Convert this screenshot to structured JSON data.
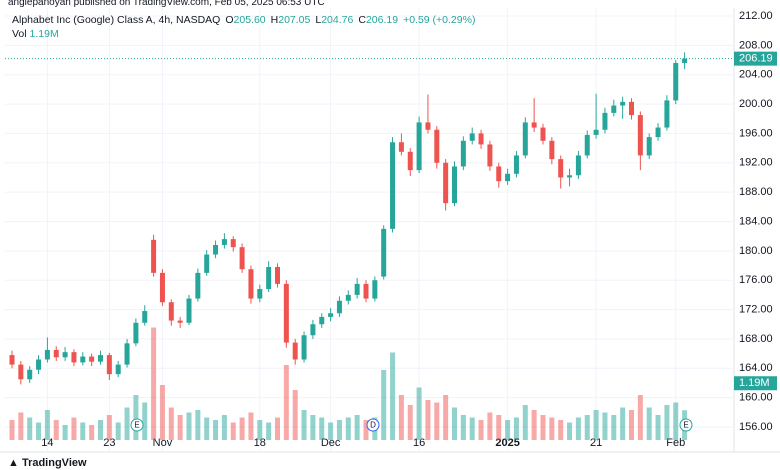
{
  "header": "anglepanoyan published on TradingView.com, Feb 05, 2025 06:53 UTC",
  "footer": "TradingView",
  "chart_data": {
    "type": "candlestick",
    "symbol": "Alphabet Inc (Google) Class A, 4h, NASDAQ",
    "ohlc_legend": [
      {
        "key": "O",
        "value": "205.60"
      },
      {
        "key": "H",
        "value": "207.05"
      },
      {
        "key": "L",
        "value": "204.76"
      },
      {
        "key": "C",
        "value": "206.19"
      }
    ],
    "change": "+0.59 (+0.29%)",
    "volume_legend": {
      "key": "Vol",
      "value": "1.19M"
    },
    "last_price_label": "206.19",
    "last_volume_label": "1.19M",
    "up_color": "#26a69a",
    "down_color": "#ef5350",
    "grid": true,
    "events": [
      {
        "label": "E"
      },
      {
        "label": "D"
      },
      {
        "label": "E"
      }
    ],
    "categories": [
      null,
      null,
      null,
      null,
      "14",
      null,
      null,
      null,
      null,
      null,
      null,
      "23",
      null,
      null,
      null,
      null,
      null,
      "Nov",
      null,
      null,
      null,
      null,
      null,
      null,
      null,
      null,
      null,
      null,
      "18",
      null,
      null,
      null,
      null,
      null,
      null,
      null,
      "Dec",
      null,
      null,
      null,
      null,
      null,
      null,
      null,
      null,
      null,
      "16",
      null,
      null,
      null,
      null,
      null,
      null,
      null,
      null,
      null,
      "2025",
      null,
      null,
      null,
      null,
      null,
      null,
      null,
      null,
      null,
      "21",
      null,
      null,
      null,
      null,
      null,
      null,
      null,
      null,
      "Feb",
      null
    ],
    "open": [
      165.8,
      164.5,
      162.5,
      163.8,
      165.2,
      166.5,
      165.5,
      166.2,
      164.8,
      165.6,
      164.9,
      165.8,
      163.2,
      164.5,
      167.4,
      170.2,
      181.5,
      177.0,
      173.0,
      170.5,
      170.2,
      173.5,
      177.0,
      179.5,
      180.8,
      181.6,
      180.5,
      177.5,
      173.5,
      174.8,
      177.8,
      175.5,
      167.5,
      165.2,
      168.5,
      170.0,
      171.0,
      171.5,
      173.2,
      174.0,
      175.5,
      173.5,
      176.5,
      183.0,
      194.8,
      193.5,
      191.0,
      197.5,
      196.5,
      192.0,
      186.5,
      191.5,
      195.0,
      196.0,
      194.5,
      191.5,
      189.5,
      190.5,
      193.0,
      197.5,
      196.8,
      195.0,
      192.5,
      190.0,
      190.3,
      193.0,
      195.8,
      196.5,
      198.8,
      199.8,
      200.3,
      198.5,
      193.0,
      195.5,
      196.8,
      200.5,
      205.6
    ],
    "high": [
      166.4,
      165.0,
      164.3,
      165.8,
      168.2,
      167.0,
      166.9,
      166.6,
      166.2,
      166.0,
      166.4,
      166.1,
      165.0,
      168.0,
      170.8,
      172.6,
      182.2,
      177.5,
      173.4,
      171.0,
      174.0,
      177.6,
      180.1,
      181.4,
      182.4,
      182.0,
      181.0,
      178.0,
      175.4,
      178.6,
      178.3,
      176.0,
      168.0,
      169.0,
      170.6,
      171.5,
      172.2,
      173.8,
      174.6,
      176.3,
      176.0,
      176.5,
      183.5,
      195.5,
      196.0,
      194.0,
      198.3,
      201.3,
      197.0,
      192.5,
      192.2,
      195.6,
      196.8,
      196.5,
      195.0,
      192.0,
      191.2,
      193.6,
      198.2,
      200.8,
      197.3,
      195.5,
      193.0,
      191.2,
      193.6,
      196.4,
      201.4,
      199.5,
      200.6,
      201.0,
      200.8,
      199.0,
      196.0,
      197.4,
      201.2,
      206.0,
      207.05
    ],
    "low": [
      164.0,
      161.8,
      162.0,
      163.2,
      164.8,
      165.0,
      165.0,
      164.3,
      164.4,
      164.3,
      164.5,
      162.4,
      162.8,
      164.1,
      167.0,
      169.8,
      176.5,
      172.5,
      169.8,
      169.5,
      169.9,
      173.1,
      176.6,
      179.0,
      180.3,
      179.9,
      177.0,
      172.8,
      173.0,
      174.4,
      175.0,
      166.8,
      164.5,
      164.8,
      168.0,
      169.5,
      170.4,
      171.0,
      172.7,
      173.5,
      173.0,
      173.1,
      176.1,
      182.5,
      193.0,
      190.2,
      190.6,
      196.0,
      191.2,
      185.5,
      186.1,
      191.0,
      194.5,
      193.9,
      190.9,
      188.6,
      189.0,
      190.0,
      192.6,
      196.2,
      194.5,
      191.8,
      188.5,
      188.8,
      189.8,
      192.6,
      195.3,
      196.0,
      198.3,
      198.0,
      197.9,
      191.0,
      192.5,
      195.0,
      196.4,
      200.0,
      204.76
    ],
    "close": [
      164.5,
      162.5,
      163.8,
      165.2,
      166.5,
      165.5,
      166.2,
      164.8,
      165.6,
      164.9,
      165.8,
      163.2,
      164.5,
      167.4,
      170.2,
      171.8,
      177.0,
      173.0,
      170.5,
      170.2,
      173.5,
      177.0,
      179.5,
      180.8,
      181.6,
      180.5,
      177.5,
      173.5,
      174.8,
      177.8,
      175.5,
      167.5,
      165.2,
      168.5,
      170.0,
      171.0,
      171.5,
      173.2,
      174.0,
      175.5,
      173.5,
      176.0,
      183.0,
      194.8,
      193.5,
      191.0,
      197.5,
      196.5,
      192.0,
      186.5,
      191.5,
      195.0,
      196.0,
      194.5,
      191.5,
      189.5,
      190.5,
      193.0,
      197.5,
      196.8,
      195.0,
      192.5,
      190.0,
      190.3,
      193.0,
      195.8,
      196.5,
      198.8,
      199.8,
      200.3,
      198.5,
      193.0,
      195.5,
      196.8,
      200.5,
      205.6,
      206.19
    ],
    "volume": [
      0.8,
      1.1,
      0.9,
      0.7,
      1.2,
      0.8,
      0.6,
      0.9,
      0.7,
      0.6,
      0.8,
      1.0,
      0.7,
      1.3,
      1.8,
      1.5,
      4.5,
      2.2,
      1.3,
      1.0,
      1.1,
      1.2,
      0.9,
      0.8,
      1.0,
      0.7,
      0.9,
      1.1,
      0.8,
      0.7,
      0.9,
      3.0,
      2.0,
      1.2,
      1.0,
      0.9,
      0.7,
      0.8,
      0.9,
      1.0,
      0.8,
      0.9,
      2.8,
      3.5,
      1.8,
      1.4,
      2.1,
      1.6,
      1.5,
      1.8,
      1.3,
      1.0,
      0.9,
      0.8,
      1.1,
      1.0,
      0.8,
      0.9,
      1.4,
      1.2,
      1.0,
      0.9,
      0.8,
      0.7,
      0.9,
      1.0,
      1.2,
      1.1,
      1.0,
      1.3,
      1.2,
      1.8,
      1.3,
      1.0,
      1.4,
      1.5,
      1.19
    ],
    "vlim": [
      0,
      12
    ],
    "ylim": [
      156,
      212
    ],
    "yticks": [
      {
        "value": 156,
        "label": "156.00"
      },
      {
        "value": 160,
        "label": "160.00"
      },
      {
        "value": 164,
        "label": "164.00"
      },
      {
        "value": 168,
        "label": "168.00"
      },
      {
        "value": 172,
        "label": "172.00"
      },
      {
        "value": 176,
        "label": "176.00"
      },
      {
        "value": 180,
        "label": "180.00"
      },
      {
        "value": 184,
        "label": "184.00"
      },
      {
        "value": 188,
        "label": "188.00"
      },
      {
        "value": 192,
        "label": "192.00"
      },
      {
        "value": 196,
        "label": "196.00"
      },
      {
        "value": 200,
        "label": "200.00"
      },
      {
        "value": 204,
        "label": "204.00"
      },
      {
        "value": 208,
        "label": "208.00"
      },
      {
        "value": 212,
        "label": "212.00"
      }
    ]
  }
}
